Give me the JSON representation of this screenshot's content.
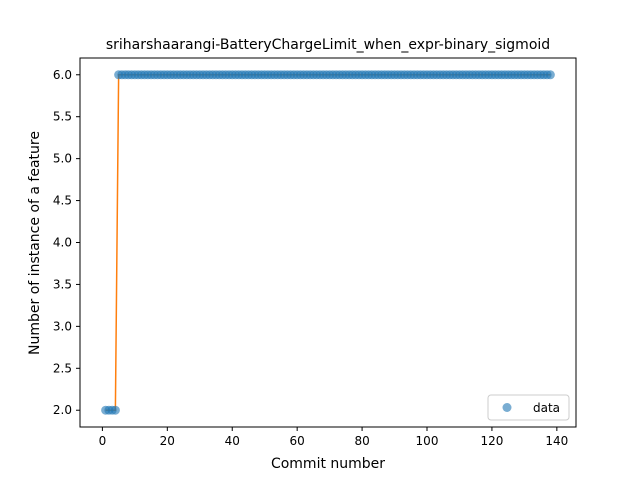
{
  "chart_data": {
    "type": "scatter",
    "title": "sriharshaarangi-BatteryChargeLimit_when_expr-binary_sigmoid",
    "xlabel": "Commit number",
    "ylabel": "Number of instance of a feature",
    "xlim": [
      -6.9,
      145.9
    ],
    "ylim": [
      1.8,
      6.2
    ],
    "xticks": [
      0,
      20,
      40,
      60,
      80,
      100,
      120,
      140
    ],
    "xtick_labels": [
      "0",
      "20",
      "40",
      "60",
      "80",
      "100",
      "120",
      "140"
    ],
    "yticks": [
      2.0,
      2.5,
      3.0,
      3.5,
      4.0,
      4.5,
      5.0,
      5.5,
      6.0
    ],
    "ytick_labels": [
      "2.0",
      "2.5",
      "3.0",
      "3.5",
      "4.0",
      "4.5",
      "5.0",
      "5.5",
      "6.0"
    ],
    "legend_position": "lower-right",
    "grid": false,
    "series": [
      {
        "name": "data",
        "kind": "scatter",
        "color": "#1f77b4",
        "segments": [
          {
            "x_start": 1,
            "x_end": 4,
            "y": 2.0
          },
          {
            "x_start": 5,
            "x_end": 138,
            "y": 6.0
          }
        ]
      },
      {
        "kind": "line",
        "color": "#ff7f0e",
        "points": [
          [
            1,
            2.0
          ],
          [
            4,
            2.0
          ],
          [
            5,
            6.0
          ],
          [
            138,
            6.0
          ]
        ]
      }
    ]
  }
}
